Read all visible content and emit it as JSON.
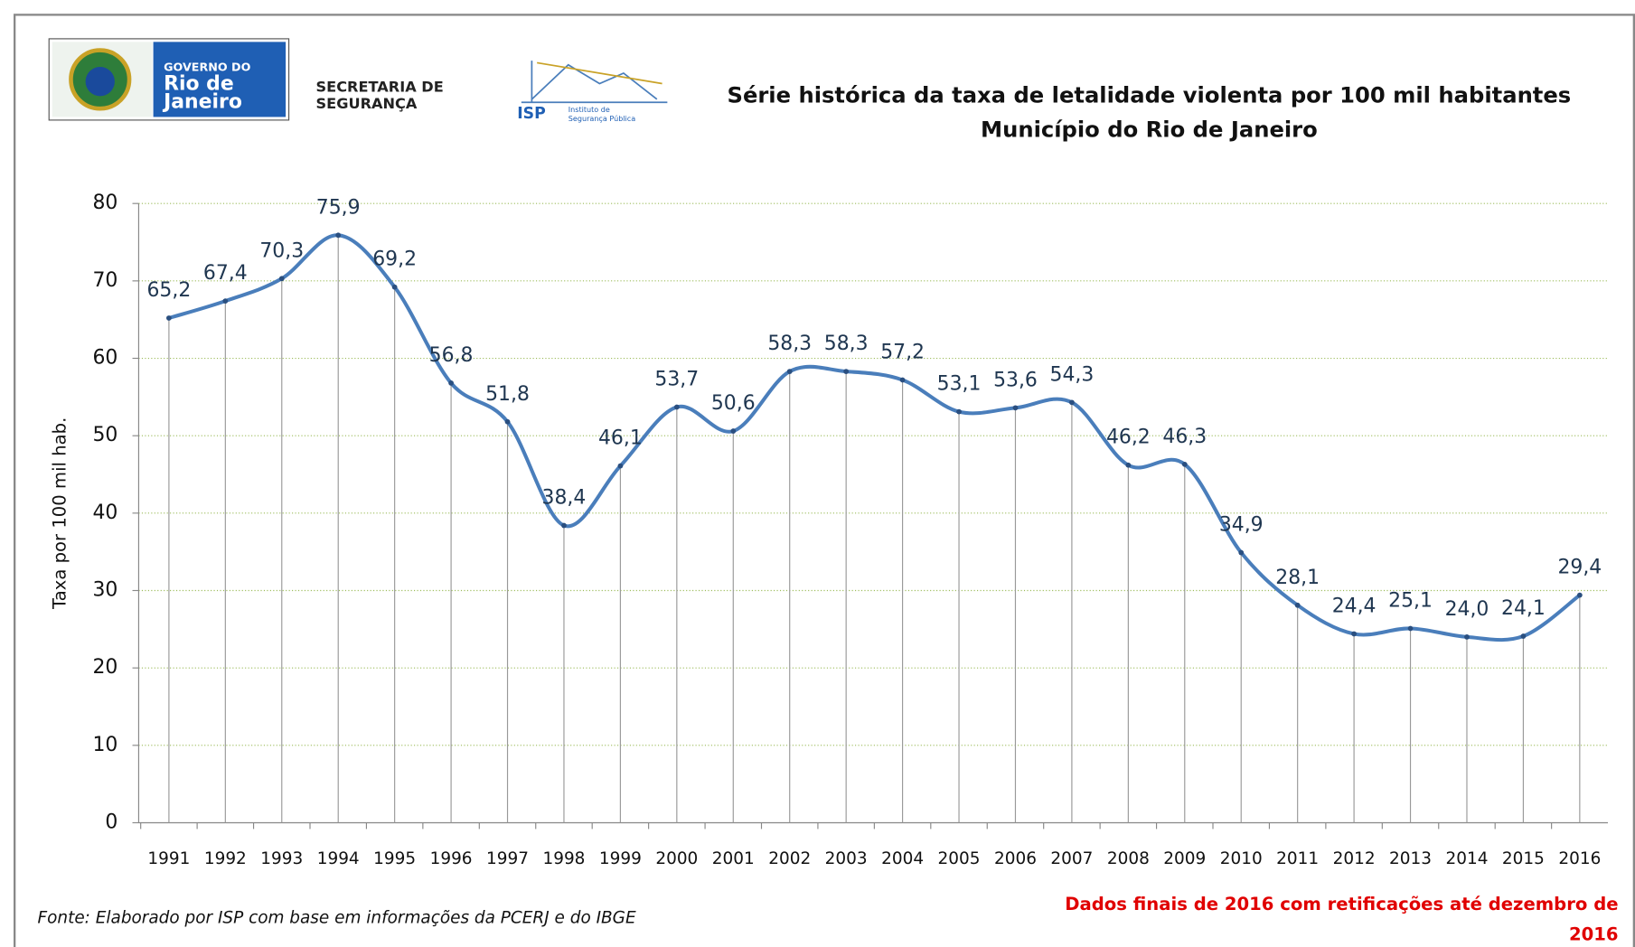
{
  "header": {
    "gov_logo": [
      "GOVERNO DO",
      "Rio de",
      "Janeiro"
    ],
    "secretaria": [
      "SECRETARIA DE",
      "SEGURANÇA"
    ],
    "isp": {
      "name": "ISP",
      "lines": [
        "Instituto de",
        "Segurança Pública"
      ]
    }
  },
  "chart_data": {
    "type": "line",
    "title": "Série histórica da taxa de letalidade violenta por 100 mil habitantes",
    "subtitle": "Município do Rio de Janeiro",
    "y_label": "Taxa por 100 mil hab.",
    "categories": [
      "1991",
      "1992",
      "1993",
      "1994",
      "1995",
      "1996",
      "1997",
      "1998",
      "1999",
      "2000",
      "2001",
      "2002",
      "2003",
      "2004",
      "2005",
      "2006",
      "2007",
      "2008",
      "2009",
      "2010",
      "2011",
      "2012",
      "2013",
      "2014",
      "2015",
      "2016"
    ],
    "values": [
      65.2,
      67.4,
      70.3,
      75.9,
      69.2,
      56.8,
      51.8,
      38.4,
      46.1,
      53.7,
      50.6,
      58.3,
      58.3,
      57.2,
      53.1,
      53.6,
      54.3,
      46.2,
      46.3,
      34.9,
      28.1,
      24.4,
      25.1,
      24.0,
      24.1,
      29.4
    ],
    "value_labels": [
      "65,2",
      "67,4",
      "70,3",
      "75,9",
      "69,2",
      "56,8",
      "51,8",
      "38,4",
      "46,1",
      "53,7",
      "50,6",
      "58,3",
      "58,3",
      "57,2",
      "53,1",
      "53,6",
      "54,3",
      "46,2",
      "46,3",
      "34,9",
      "28,1",
      "24,4",
      "25,1",
      "24,0",
      "24,1",
      "29,4"
    ],
    "color": "#4a7ebb",
    "ylim": [
      0,
      80
    ],
    "yticks": [
      0,
      10,
      20,
      30,
      40,
      50,
      60,
      70,
      80
    ],
    "grid": true,
    "source": "Fonte: Elaborado por ISP com base em informações da PCERJ e do IBGE",
    "note": [
      "Dados finais de 2016 com retificações até dezembro de",
      "2016"
    ]
  }
}
